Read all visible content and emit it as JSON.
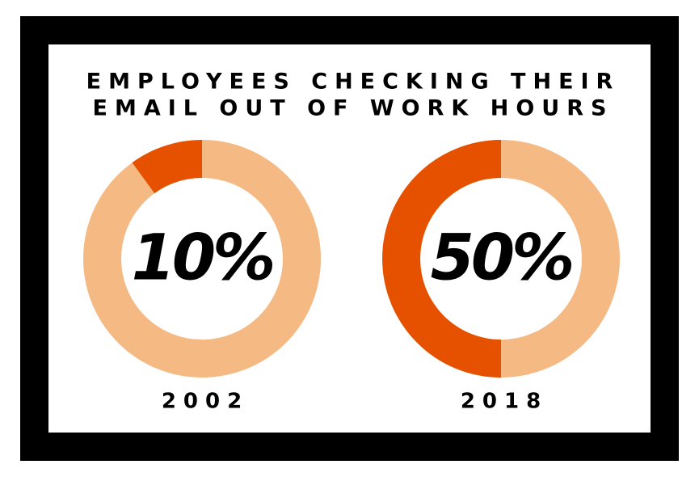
{
  "title_lines": [
    "EMPLOYEES CHECKING THEIR",
    "EMAIL OUT OF WORK HOURS"
  ],
  "chart_data": [
    {
      "type": "donut",
      "label": "2002",
      "values": [
        10
      ],
      "value_labels": [
        "10%"
      ],
      "color": "#e65100",
      "track_color": "#f5b983"
    },
    {
      "type": "donut",
      "label": "2018",
      "values": [
        50
      ],
      "value_labels": [
        "50%"
      ],
      "color": "#e65100",
      "track_color": "#f5b983"
    }
  ]
}
